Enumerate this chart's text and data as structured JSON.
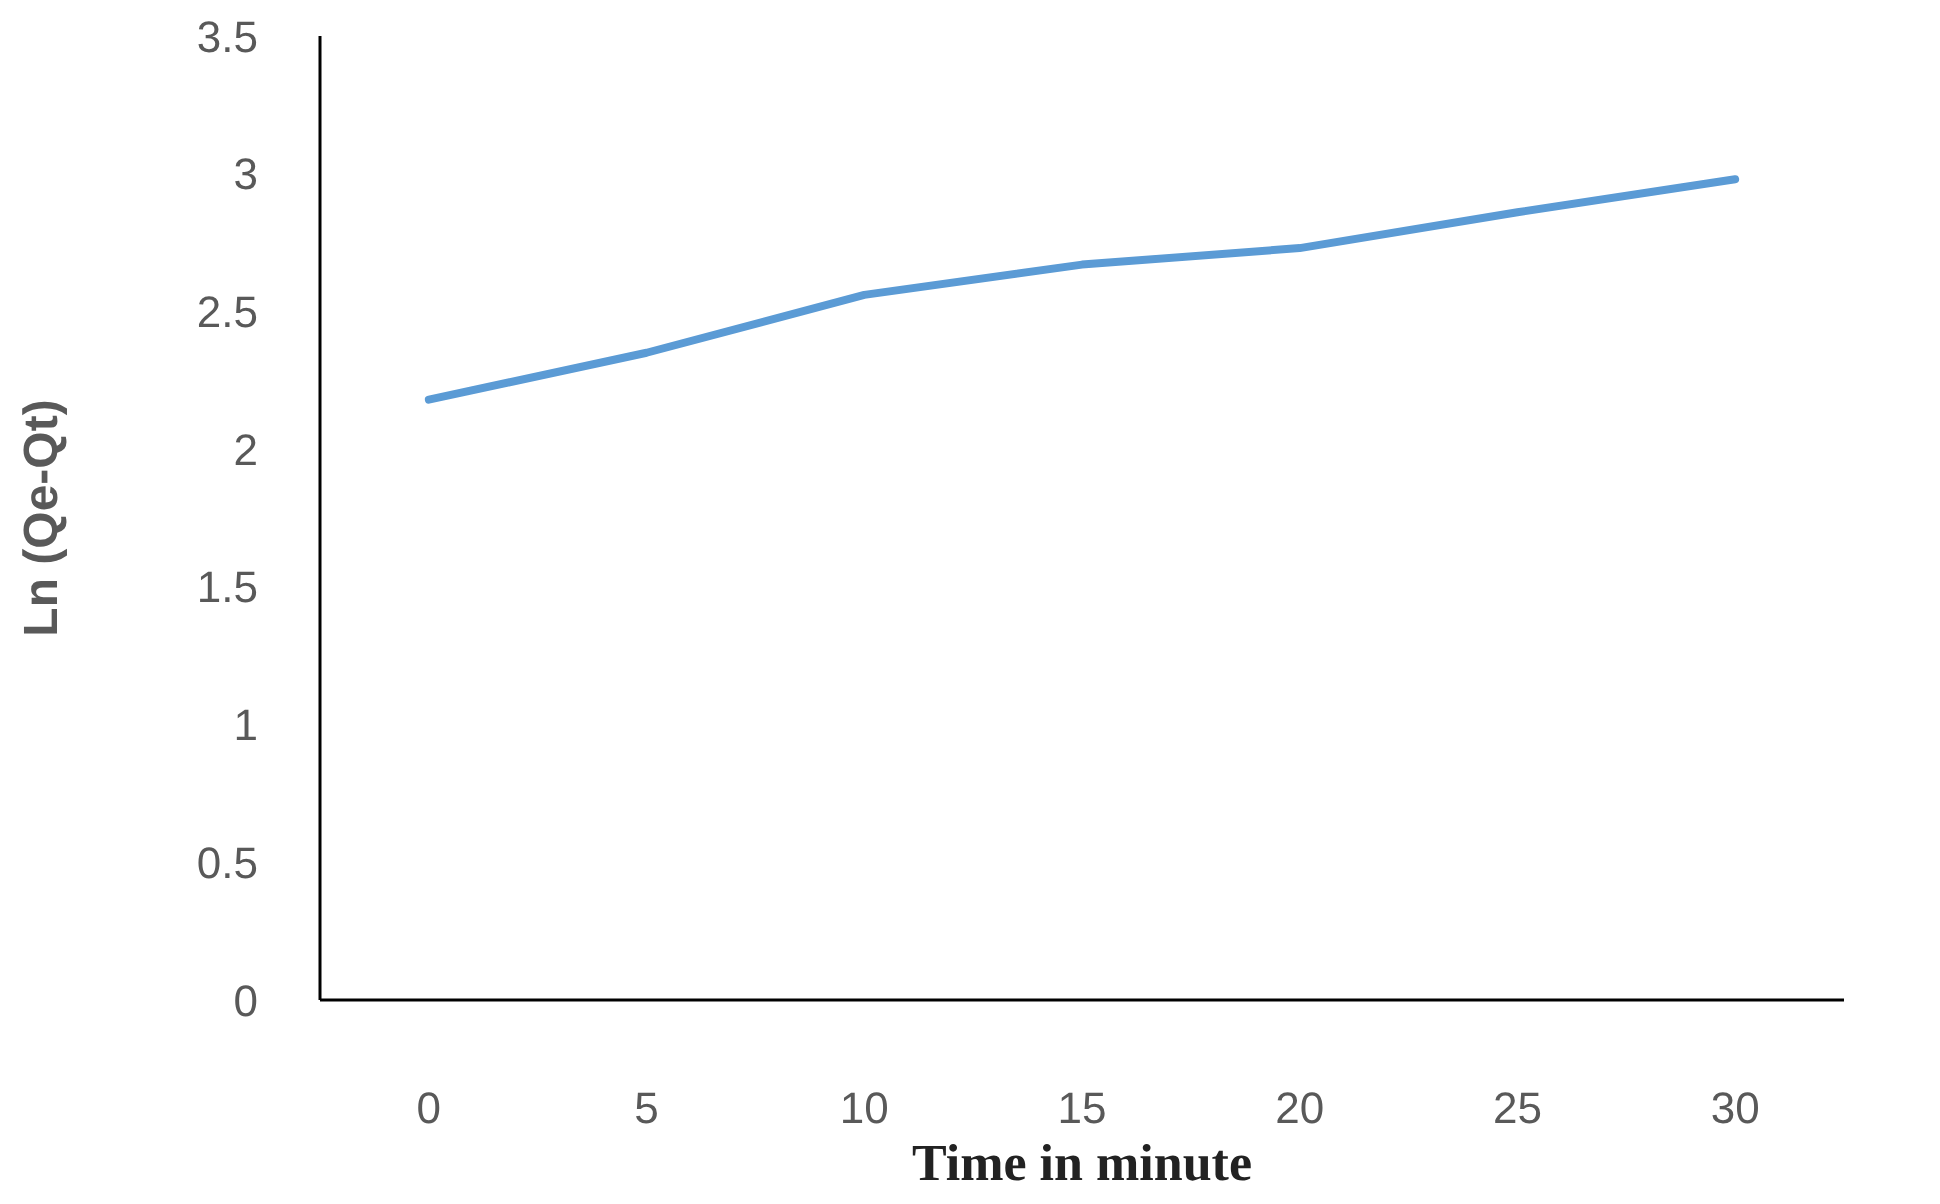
{
  "chart_data": {
    "type": "line",
    "xlabel": "Time in minute",
    "ylabel": "Ln (Qe-Qt)",
    "categories": [
      "0",
      "5",
      "10",
      "15",
      "20",
      "25",
      "30"
    ],
    "series": [
      {
        "color": "#5b9bd5",
        "values": [
          2.18,
          2.35,
          2.56,
          2.67,
          2.73,
          2.86,
          2.98
        ]
      }
    ],
    "ylim": [
      0,
      3.5
    ],
    "yticks": [
      0,
      0.5,
      1,
      1.5,
      2,
      2.5,
      3,
      3.5
    ],
    "grid": false,
    "legend": false,
    "marker": "none",
    "line_style": "solid"
  }
}
